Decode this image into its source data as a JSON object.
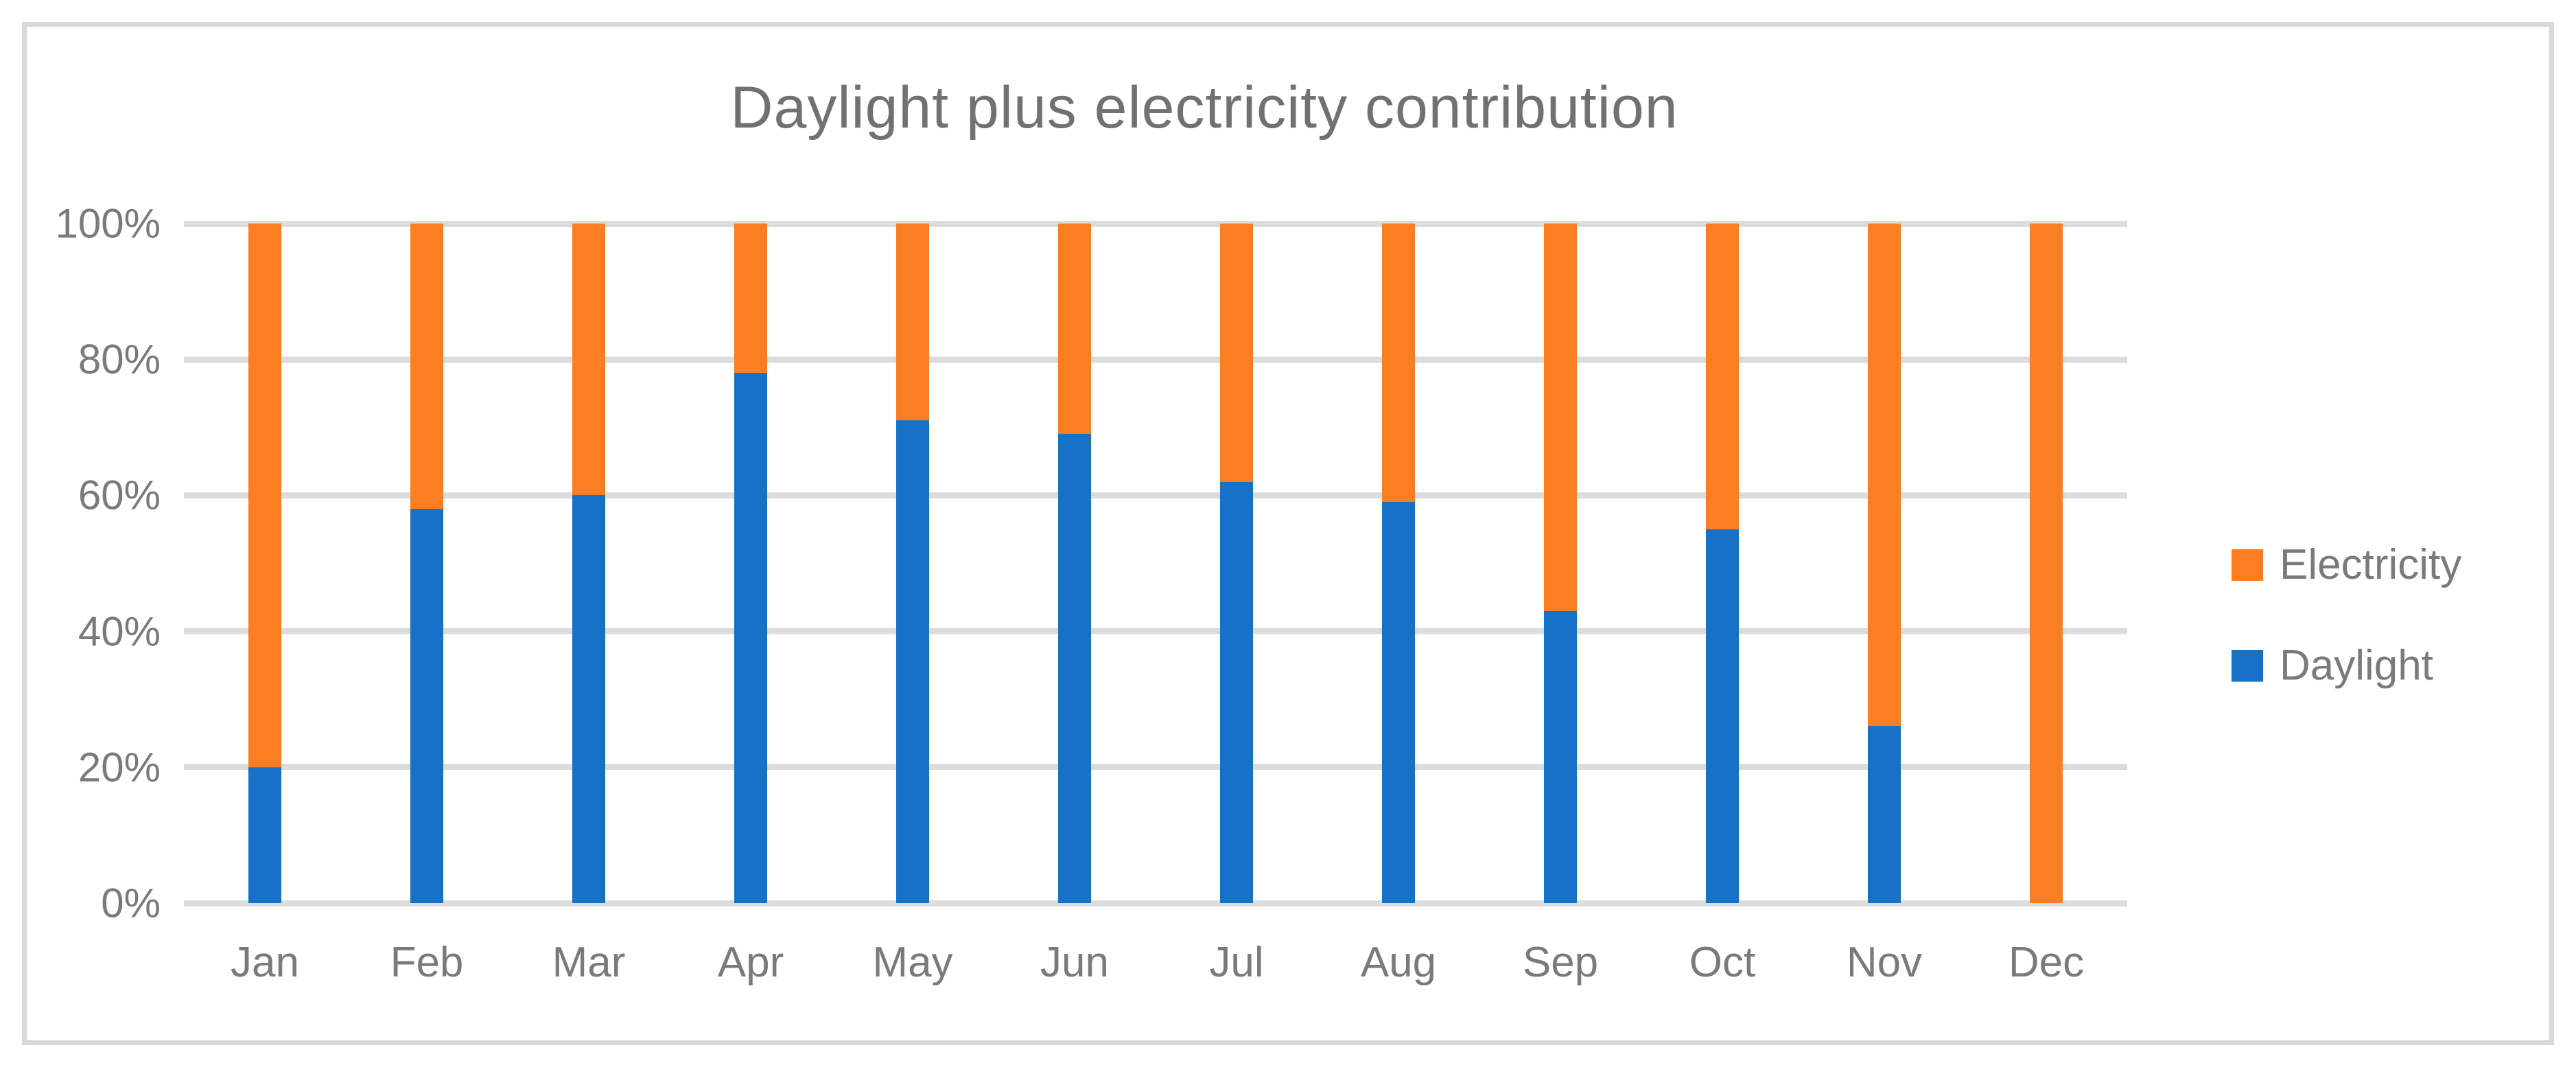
{
  "figure": {
    "background": "#FFFFFF",
    "frame_color": "#D9D9D9",
    "gridline_color": "#DCDCDC",
    "text_color": "#7A7A7A",
    "title_color": "#717171"
  },
  "chart_data": {
    "type": "bar",
    "variant": "stacked-100-percent",
    "title": "Daylight plus electricity contribution",
    "xlabel": "",
    "ylabel": "",
    "categories": [
      "Jan",
      "Feb",
      "Mar",
      "Apr",
      "May",
      "Jun",
      "Jul",
      "Aug",
      "Sep",
      "Oct",
      "Nov",
      "Dec"
    ],
    "series": [
      {
        "name": "Daylight",
        "color": "#1771C6",
        "values": [
          20,
          58,
          60,
          78,
          71,
          69,
          62,
          59,
          43,
          55,
          26,
          0
        ]
      },
      {
        "name": "Electricity",
        "color": "#FC7E23",
        "values": [
          80,
          42,
          40,
          22,
          29,
          31,
          38,
          41,
          57,
          45,
          74,
          100
        ]
      }
    ],
    "ylim": [
      0,
      100
    ],
    "yticks": [
      "0%",
      "20%",
      "40%",
      "60%",
      "80%",
      "100%"
    ],
    "grid": true,
    "legend_position": "right"
  },
  "legend": {
    "items": [
      {
        "label": "Electricity",
        "color": "#FC7E23"
      },
      {
        "label": "Daylight",
        "color": "#1771C6"
      }
    ]
  }
}
